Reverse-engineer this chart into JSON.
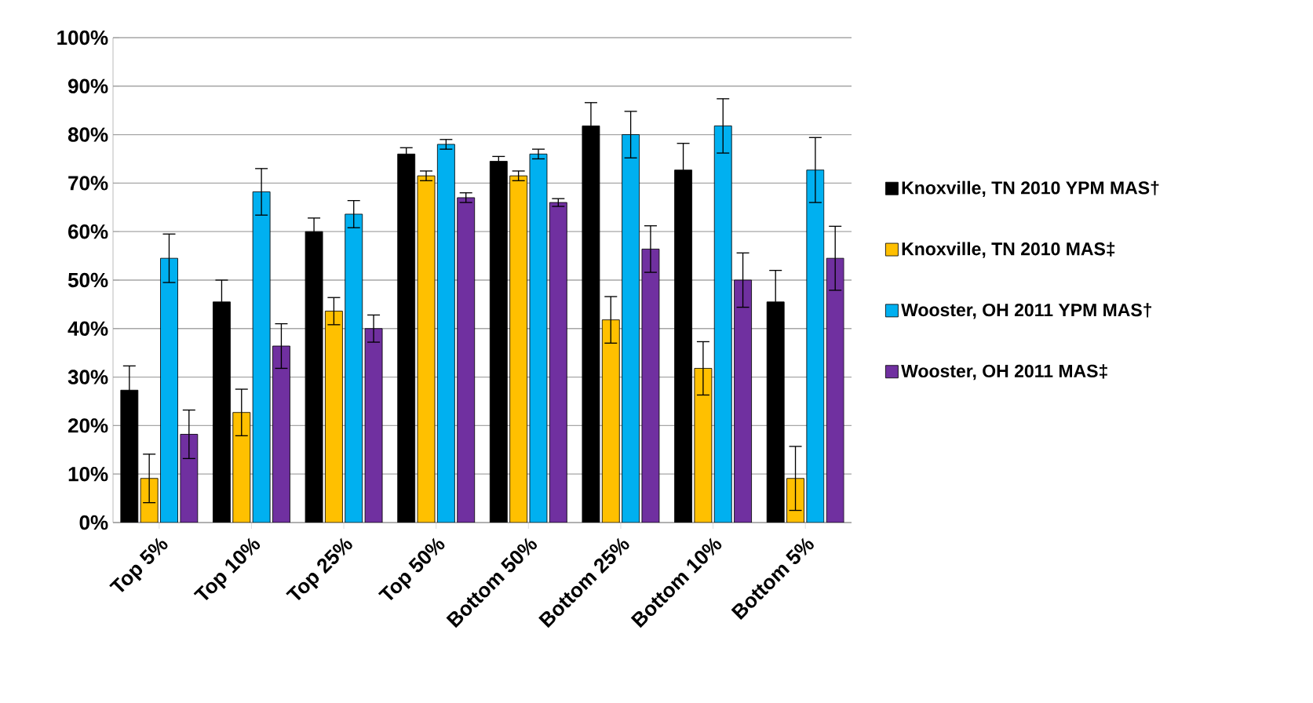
{
  "chart_data": {
    "type": "bar",
    "categories": [
      "Top 5%",
      "Top 10%",
      "Top 25%",
      "Top 50%",
      "Bottom 50%",
      "Bottom 25%",
      "Bottom 10%",
      "Bottom 5%"
    ],
    "series": [
      {
        "name": "Knoxville, TN 2010 YPM MAS†",
        "color": "#000000",
        "values": [
          27.3,
          45.5,
          60,
          76,
          74.5,
          81.8,
          72.7,
          45.5
        ],
        "errors": [
          5,
          4.5,
          2.8,
          1.3,
          1,
          4.8,
          5.5,
          6.5
        ]
      },
      {
        "name": "Knoxville, TN 2010 MAS‡",
        "color": "#ffc000",
        "values": [
          9.1,
          22.7,
          43.6,
          71.5,
          71.5,
          41.8,
          31.8,
          9.1
        ],
        "errors": [
          5,
          4.8,
          2.8,
          1,
          1,
          4.8,
          5.5,
          6.6
        ]
      },
      {
        "name": "Wooster, OH 2011 YPM MAS†",
        "color": "#00b0f0",
        "values": [
          54.5,
          68.2,
          63.6,
          78,
          76,
          80,
          81.8,
          72.7
        ],
        "errors": [
          5,
          4.8,
          2.8,
          1,
          1,
          4.8,
          5.6,
          6.7
        ]
      },
      {
        "name": "Wooster, OH 2011 MAS‡",
        "color": "#7030a0",
        "values": [
          18.2,
          36.4,
          40,
          67,
          66,
          56.4,
          50,
          54.5
        ],
        "errors": [
          5,
          4.6,
          2.8,
          1,
          0.8,
          4.8,
          5.6,
          6.6
        ]
      }
    ],
    "ylim": [
      0,
      100
    ],
    "yticks": [
      {
        "value": 0,
        "label": "0%"
      },
      {
        "value": 10,
        "label": "10%"
      },
      {
        "value": 20,
        "label": "20%"
      },
      {
        "value": 30,
        "label": "30%"
      },
      {
        "value": 40,
        "label": "40%"
      },
      {
        "value": 50,
        "label": "50%"
      },
      {
        "value": 60,
        "label": "60%"
      },
      {
        "value": 70,
        "label": "70%"
      },
      {
        "value": 80,
        "label": "80%"
      },
      {
        "value": 90,
        "label": "90%"
      },
      {
        "value": 100,
        "label": "100%"
      }
    ],
    "grid": "y",
    "legend": "right"
  }
}
